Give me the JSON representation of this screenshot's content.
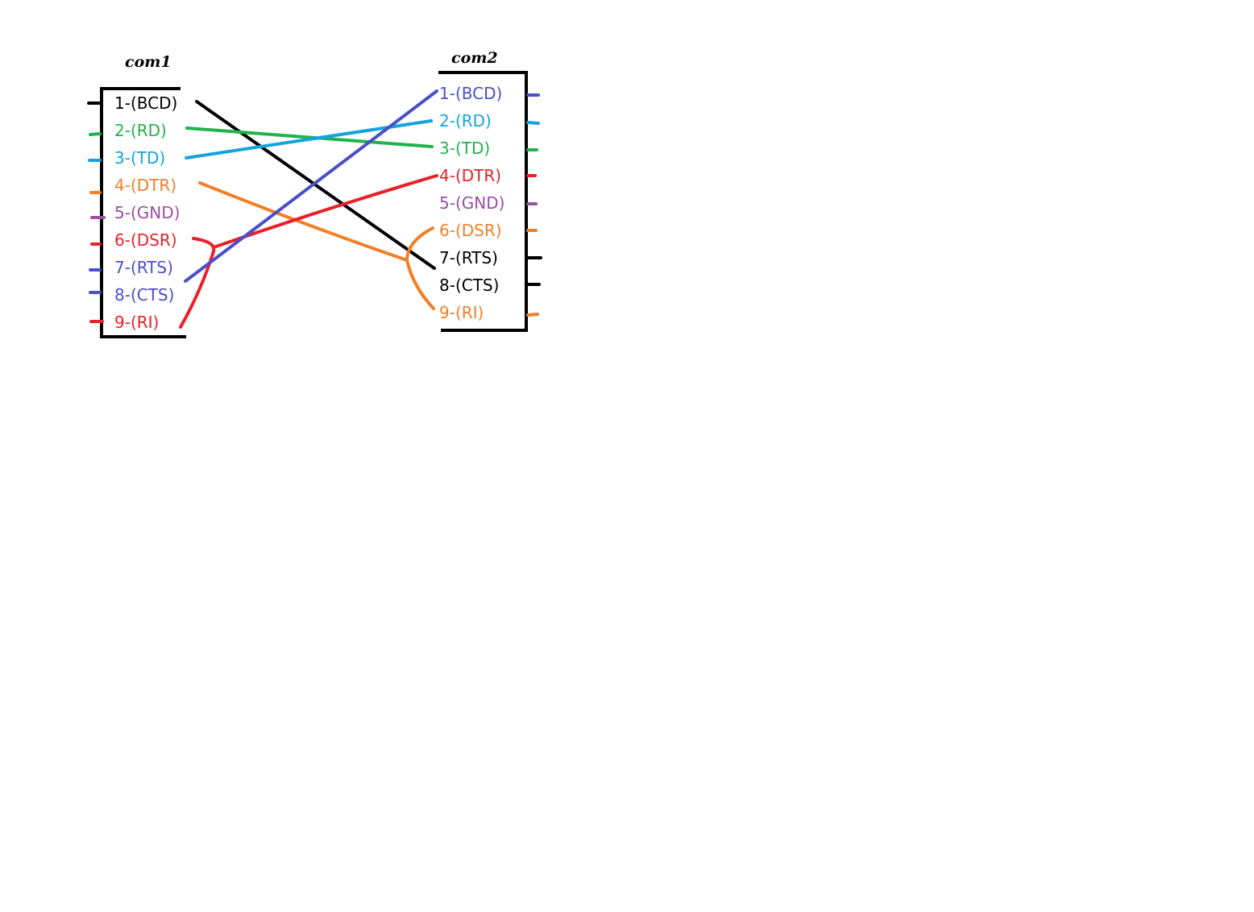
{
  "connectors": [
    {
      "title": "com1",
      "pins": [
        {
          "label": "1-(BCD)",
          "color": "#000000"
        },
        {
          "label": "2-(RD)",
          "color": "#22b14c"
        },
        {
          "label": "3-(TD)",
          "color": "#15a3dd"
        },
        {
          "label": "4-(DTR)",
          "color": "#f07f27"
        },
        {
          "label": "5-(GND)",
          "color": "#9a4ea5"
        },
        {
          "label": "6-(DSR)",
          "color": "#e8202a"
        },
        {
          "label": "7-(RTS)",
          "color": "#4a4ec8"
        },
        {
          "label": "8-(CTS)",
          "color": "#4a4ec8"
        },
        {
          "label": "9-(RI)",
          "color": "#e8202a"
        }
      ]
    },
    {
      "title": "com2",
      "pins": [
        {
          "label": "1-(BCD)",
          "color": "#4a4ec8"
        },
        {
          "label": "2-(RD)",
          "color": "#15a3dd"
        },
        {
          "label": "3-(TD)",
          "color": "#22b14c"
        },
        {
          "label": "4-(DTR)",
          "color": "#e8202a"
        },
        {
          "label": "5-(GND)",
          "color": "#9a4ea5"
        },
        {
          "label": "6-(DSR)",
          "color": "#f07f27"
        },
        {
          "label": "7-(RTS)",
          "color": "#000000"
        },
        {
          "label": "8-(CTS)",
          "color": "#000000"
        },
        {
          "label": "9-(RI)",
          "color": "#f07f27"
        }
      ]
    }
  ],
  "wires": [
    {
      "from": "com1.1-(BCD)",
      "to": "com2.7-(RTS)",
      "color": "#000000"
    },
    {
      "from": "com1.2-(RD)",
      "to": "com2.3-(TD)",
      "color": "#22b14c"
    },
    {
      "from": "com1.3-(TD)",
      "to": "com2.2-(RD)",
      "color": "#15a3dd"
    },
    {
      "from": "com1.4-(DTR)",
      "to": "com2.6-(DSR) + com2.9-(RI)",
      "color": "#f07f27"
    },
    {
      "from": "com1.6-(DSR) + com1.9-(RI)",
      "to": "com2.4-(DTR)",
      "color": "#e8202a"
    },
    {
      "from": "com1.8-(CTS)",
      "to": "com2.1-(BCD)",
      "color": "#4a4ec8"
    }
  ]
}
